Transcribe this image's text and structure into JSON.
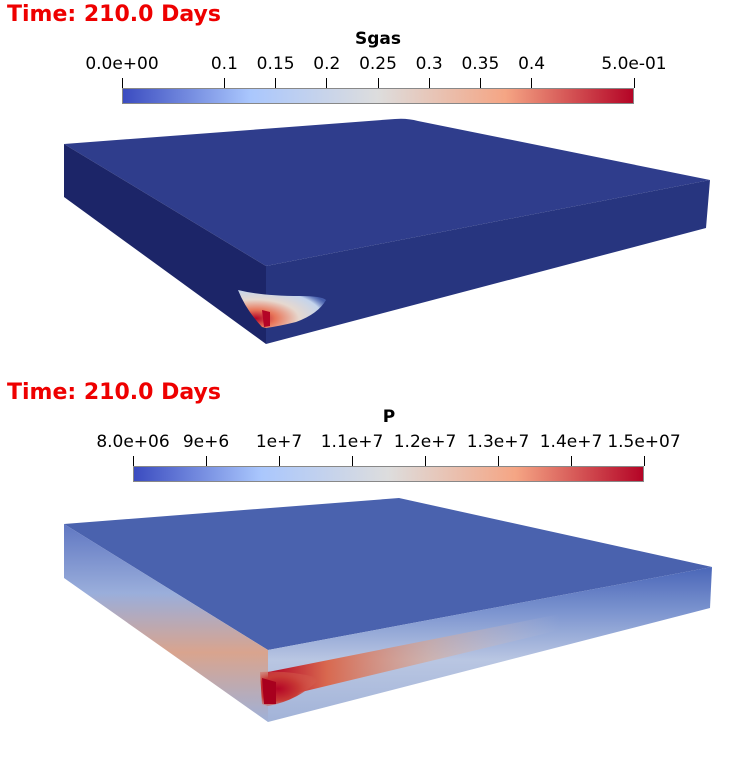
{
  "panels": [
    {
      "time_label": "Time: 210.0 Days",
      "colorbar": {
        "title": "Sgas",
        "tick_labels": [
          "0.0e+00",
          "0.1",
          "0.15",
          "0.2",
          "0.25",
          "0.3",
          "0.35",
          "0.4",
          "5.0e-01"
        ],
        "tick_values": [
          0.0,
          0.1,
          0.15,
          0.2,
          0.25,
          0.3,
          0.35,
          0.4,
          0.5
        ],
        "range": [
          0.0,
          0.5
        ],
        "colormap": [
          "#3b4cc0",
          "#aac7fd",
          "#dddddd",
          "#f5a584",
          "#b40426"
        ]
      }
    },
    {
      "time_label": "Time: 210.0 Days",
      "colorbar": {
        "title": "P",
        "tick_labels": [
          "8.0e+06",
          "9e+6",
          "1e+7",
          "1.1e+7",
          "1.2e+7",
          "1.3e+7",
          "1.4e+7",
          "1.5e+07"
        ],
        "tick_values": [
          8000000,
          9000000,
          10000000,
          11000000,
          12000000,
          13000000,
          14000000,
          15000000
        ],
        "range": [
          8000000,
          15000000
        ],
        "colormap": [
          "#3b4cc0",
          "#aac7fd",
          "#dddddd",
          "#f5a584",
          "#b40426"
        ]
      }
    }
  ]
}
